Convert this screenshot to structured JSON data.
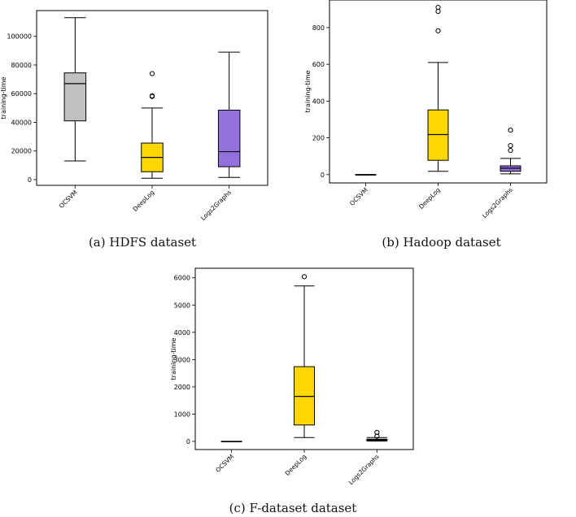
{
  "chart_data": [
    {
      "type": "box",
      "caption": "(a) HDFS dataset",
      "ylabel": "training-time",
      "ylim": [
        -4000,
        118000
      ],
      "yticks": [
        0,
        20000,
        40000,
        60000,
        80000,
        100000
      ],
      "categories": [
        "OCSVM",
        "DeepLog",
        "Logs2Graphs"
      ],
      "boxes": [
        {
          "label": "OCSVM",
          "color": "#c0c0c0",
          "whisker_low": 13000,
          "q1": 41000,
          "median": 67000,
          "q3": 74500,
          "whisker_high": 113000,
          "outliers": []
        },
        {
          "label": "DeepLog",
          "color": "#ffd700",
          "whisker_low": 1000,
          "q1": 5500,
          "median": 15500,
          "q3": 25500,
          "whisker_high": 50000,
          "outliers": [
            58000,
            58500,
            74000
          ]
        },
        {
          "label": "Logs2Graphs",
          "color": "#9370db",
          "whisker_low": 1500,
          "q1": 9000,
          "median": 19500,
          "q3": 48500,
          "whisker_high": 89000,
          "outliers": []
        }
      ]
    },
    {
      "type": "box",
      "caption": "(b) Hadoop dataset",
      "ylabel": "training-time",
      "ylim": [
        -45,
        950
      ],
      "yticks": [
        0,
        200,
        400,
        600,
        800
      ],
      "categories": [
        "OCSVM",
        "DeepLog",
        "Logs2Graphs"
      ],
      "boxes": [
        {
          "label": "OCSVM",
          "color": "#c0c0c0",
          "whisker_low": 0,
          "q1": 0,
          "median": 0,
          "q3": 0,
          "whisker_high": 0,
          "outliers": []
        },
        {
          "label": "DeepLog",
          "color": "#ffd700",
          "whisker_low": 18,
          "q1": 78,
          "median": 218,
          "q3": 352,
          "whisker_high": 610,
          "outliers": [
            782,
            888,
            910
          ]
        },
        {
          "label": "Logs2Graphs",
          "color": "#9370db",
          "whisker_low": 4,
          "q1": 18,
          "median": 35,
          "q3": 48,
          "whisker_high": 88,
          "outliers": [
            132,
            158,
            242
          ]
        }
      ]
    },
    {
      "type": "box",
      "caption": "(c) F-dataset dataset",
      "ylabel": "training-time",
      "ylim": [
        -300,
        6350
      ],
      "yticks": [
        0,
        1000,
        2000,
        3000,
        4000,
        5000,
        6000
      ],
      "categories": [
        "OCSVM",
        "DeepLog",
        "Logs2Graphs"
      ],
      "boxes": [
        {
          "label": "OCSVM",
          "color": "#c0c0c0",
          "whisker_low": 0,
          "q1": 0,
          "median": 0,
          "q3": 0,
          "whisker_high": 0,
          "outliers": []
        },
        {
          "label": "DeepLog",
          "color": "#ffd700",
          "whisker_low": 140,
          "q1": 600,
          "median": 1650,
          "q3": 2740,
          "whisker_high": 5700,
          "outliers": [
            6040
          ]
        },
        {
          "label": "Logs2Graphs",
          "color": "#9370db",
          "whisker_low": 10,
          "q1": 30,
          "median": 55,
          "q3": 80,
          "whisker_high": 140,
          "outliers": [
            190,
            330
          ]
        }
      ]
    }
  ]
}
